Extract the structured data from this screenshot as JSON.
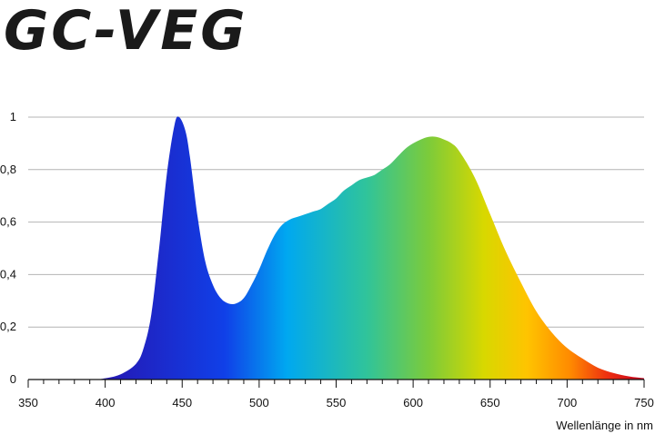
{
  "header": {
    "title": "GC-VEG"
  },
  "chart_data": {
    "type": "area",
    "title": "GC-VEG",
    "xlabel": "Wellenlänge in nm",
    "ylabel": "",
    "xlim": [
      350,
      750
    ],
    "ylim": [
      0,
      1
    ],
    "x_ticks": [
      "350",
      "400",
      "450",
      "500",
      "550",
      "600",
      "650",
      "700",
      "750"
    ],
    "y_ticks": [
      "0",
      "0,2",
      "0,4",
      "0,6",
      "0,8",
      "1"
    ],
    "grid": "horizontal",
    "series": [
      {
        "x": [
          350,
          390,
          400,
          410,
          420,
          425,
          430,
          435,
          440,
          445,
          448,
          452,
          455,
          460,
          465,
          470,
          475,
          480,
          485,
          490,
          495,
          500,
          505,
          510,
          515,
          520,
          525,
          530,
          535,
          540,
          545,
          550,
          555,
          560,
          565,
          570,
          575,
          580,
          585,
          590,
          595,
          600,
          605,
          610,
          615,
          620,
          625,
          630,
          640,
          650,
          660,
          670,
          680,
          690,
          700,
          710,
          720,
          730,
          740,
          750
        ],
        "values": [
          0,
          0,
          0.005,
          0.02,
          0.06,
          0.12,
          0.25,
          0.5,
          0.78,
          0.97,
          1.0,
          0.95,
          0.85,
          0.62,
          0.45,
          0.36,
          0.31,
          0.29,
          0.29,
          0.31,
          0.36,
          0.42,
          0.49,
          0.55,
          0.59,
          0.61,
          0.62,
          0.63,
          0.64,
          0.65,
          0.67,
          0.69,
          0.72,
          0.74,
          0.76,
          0.77,
          0.78,
          0.8,
          0.82,
          0.85,
          0.88,
          0.9,
          0.915,
          0.925,
          0.925,
          0.915,
          0.9,
          0.87,
          0.77,
          0.63,
          0.49,
          0.37,
          0.26,
          0.18,
          0.12,
          0.08,
          0.045,
          0.025,
          0.012,
          0.005
        ]
      }
    ]
  }
}
